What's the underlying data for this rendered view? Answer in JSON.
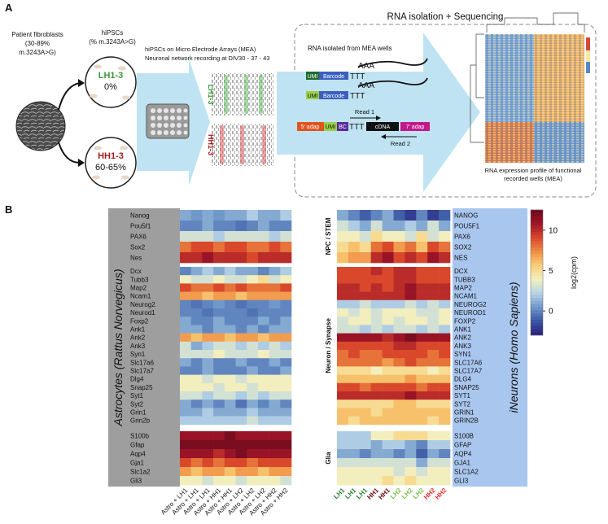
{
  "panel_a": {
    "label": "A",
    "fibroblasts": [
      "Patient fibroblasts",
      "(30-89%",
      "m.3243A>G)"
    ],
    "hipsc": [
      "hiPSCs",
      "(% m.3243A>G)"
    ],
    "lh": {
      "name": "LH1-3",
      "pct": "0%"
    },
    "hh": {
      "name": "HH1-3",
      "pct": "60-65%"
    },
    "mea": [
      "hiPSCs on Micro Electrode Arrays (MEA)",
      "Neuronal network recording at DIV30 - 37 - 43"
    ],
    "raster": [
      "LH1-3",
      "HH1-3"
    ],
    "seq_title": "RNA isolation + Sequencing",
    "rna_text": "RNA isolated from MEA wells",
    "molecule1": [
      "AAA",
      "UMI",
      "Barcode",
      "TTT"
    ],
    "molecule2": [
      "AAA",
      "UMI",
      "Barcode",
      "TTT"
    ],
    "read1": "Read 1",
    "library": [
      "5' adap",
      "UMI",
      "BC",
      "TTT",
      "cDNA",
      "7' adap"
    ],
    "read2": "Read 2",
    "profile": [
      "RNA expression profile of functional",
      "recorded wells (MEA)"
    ]
  },
  "panel_b": {
    "label": "B",
    "left": {
      "species": "Astrocytes (Rattus Norvegicus)",
      "columns": [
        "Astro + LH1",
        "Astro + LH1",
        "Astro + LH1",
        "Astro + HH1",
        "Astro + HH1",
        "Astro + LH2",
        "Astro + LH2",
        "Astro + LH2",
        "Astro + HH2",
        "Astro + HH2"
      ],
      "gene_groups": [
        [
          "Nanog",
          "Pou5f1",
          "PAX6",
          "Sox2",
          "Nes"
        ],
        [
          "Dcx",
          "Tubb3",
          "Map2",
          "Ncam1",
          "Neurog2",
          "Neurod1",
          "Foxp2",
          "Ank1",
          "Ank2",
          "Ank3",
          "Syn1",
          "Slc17a6",
          "Slc17a7",
          "Dlg4",
          "Snap25",
          "Syt1",
          "Syt2",
          "Grin1",
          "Grin2b"
        ],
        [
          "S100b",
          "Gfap",
          "Aqp4",
          "Gja1",
          "Slc1a2",
          "Gli3"
        ]
      ],
      "values": [
        [
          [
            1,
            0.5,
            1,
            0.5,
            1,
            1,
            2,
            1,
            1,
            2
          ],
          [
            0,
            0,
            1,
            0,
            0,
            -0.5,
            0,
            1,
            0,
            0
          ],
          [
            3,
            3,
            3,
            2,
            3,
            3,
            3,
            3,
            2,
            3
          ],
          [
            8,
            9,
            9,
            8,
            9,
            9,
            8,
            8,
            9,
            8
          ],
          [
            10,
            10,
            11,
            10,
            10,
            10,
            9,
            10,
            10,
            10
          ]
        ],
        [
          [
            0,
            1,
            2,
            1,
            2,
            1,
            1,
            0,
            1,
            2
          ],
          [
            4,
            3,
            3,
            4,
            3,
            3,
            4,
            5,
            3,
            4
          ],
          [
            9,
            8,
            8,
            9,
            8,
            9,
            8,
            8,
            8,
            9
          ],
          [
            7,
            7,
            6,
            7,
            7,
            6,
            7,
            7,
            7,
            7
          ],
          [
            0,
            -0.5,
            0,
            0.5,
            0,
            -0.5,
            0,
            0,
            0.5,
            0
          ],
          [
            0,
            0,
            -0.5,
            0,
            0,
            0,
            -0.5,
            0,
            0,
            0
          ],
          [
            1,
            0,
            0,
            1,
            0,
            0,
            0,
            1,
            0,
            1
          ],
          [
            1,
            1,
            0,
            1,
            1,
            0,
            1,
            0,
            1,
            1
          ],
          [
            7,
            6,
            7,
            7,
            6,
            7,
            7,
            6,
            7,
            7
          ],
          [
            3,
            1,
            2,
            3,
            3,
            2,
            3,
            2,
            3,
            2
          ],
          [
            3,
            3,
            3,
            4,
            3,
            3,
            3,
            4,
            3,
            3
          ],
          [
            1,
            0,
            1,
            0,
            0,
            1,
            0,
            0,
            1,
            0
          ],
          [
            0,
            0,
            1,
            0,
            0,
            0,
            1,
            0,
            0,
            1
          ],
          [
            4,
            4,
            3,
            4,
            4,
            3,
            4,
            4,
            4,
            4
          ],
          [
            4,
            4,
            4,
            3,
            4,
            4,
            3,
            4,
            4,
            4
          ],
          [
            3,
            3,
            2,
            3,
            3,
            2,
            3,
            2,
            3,
            3
          ],
          [
            1,
            0,
            1,
            0,
            1,
            -0.5,
            1,
            0,
            1,
            0
          ],
          [
            1,
            1,
            2,
            1,
            1,
            1,
            2,
            1,
            1,
            1
          ],
          [
            2,
            2,
            2,
            2,
            2,
            2,
            3,
            2,
            2,
            2
          ]
        ],
        [
          [
            11,
            11,
            11,
            11,
            12,
            11,
            11,
            11,
            11,
            11
          ],
          [
            12,
            12,
            12,
            12,
            12,
            12,
            12,
            12,
            12,
            12
          ],
          [
            11,
            11,
            11,
            10,
            11,
            12,
            11,
            11,
            11,
            11
          ],
          [
            9,
            8,
            9,
            8,
            9,
            9,
            8,
            9,
            9,
            9
          ],
          [
            7,
            6,
            7,
            7,
            6,
            7,
            7,
            6,
            7,
            7
          ],
          [
            4,
            4,
            3,
            4,
            4,
            3,
            4,
            4,
            4,
            3
          ]
        ]
      ]
    },
    "right": {
      "species": "iNeurons (Homo Sapiens)",
      "group_labels": [
        "NPC / STEM",
        "Neuron / Synapse",
        "Glia"
      ],
      "columns": [
        "LH1",
        "LH1",
        "LH1",
        "HH1",
        "HH1",
        "LH2",
        "LH2",
        "LH2",
        "HH2",
        "HH2"
      ],
      "column_colors": [
        "#2e7d32",
        "#2e7d32",
        "#2e7d32",
        "#6b0f14",
        "#6b0f14",
        "#7cbf4a",
        "#7cbf4a",
        "#7cbf4a",
        "#e03030",
        "#e03030"
      ],
      "gene_groups": [
        [
          "NANOG",
          "POU5F1",
          "PAX6",
          "SOX2",
          "NES"
        ],
        [
          "DCX",
          "TUBB3",
          "MAP2",
          "NCAM1",
          "NEUROG2",
          "NEUROD1",
          "FOXP2",
          "ANK1",
          "ANK2",
          "ANK3",
          "SYN1",
          "SLC17A6",
          "SLC17A7",
          "DLG4",
          "SNAP25",
          "SYT1",
          "SYT2",
          "GRIN1",
          "GRIN2B"
        ],
        [
          "S100B",
          "GFAP",
          "AQP4",
          "GJA1",
          "SLC1A2",
          "GLI3"
        ]
      ],
      "values": [
        [
          [
            1,
            0,
            -1,
            0,
            1,
            -1,
            -2,
            0,
            -2,
            -1
          ],
          [
            3,
            2,
            1,
            3,
            1,
            1,
            2,
            1,
            3,
            1
          ],
          [
            4,
            4,
            3,
            5,
            4,
            4,
            3,
            5,
            3,
            4
          ],
          [
            5,
            6,
            5,
            8,
            9,
            7,
            8,
            6,
            9,
            8
          ],
          [
            6,
            7,
            7,
            10,
            11,
            9,
            10,
            9,
            11,
            10
          ]
        ],
        [
          [
            9,
            9,
            9,
            10,
            9,
            10,
            10,
            9,
            9,
            9
          ],
          [
            9,
            9,
            9,
            9,
            9,
            10,
            10,
            9,
            9,
            9
          ],
          [
            10,
            10,
            9,
            10,
            9,
            10,
            11,
            10,
            10,
            10
          ],
          [
            10,
            10,
            10,
            10,
            10,
            10,
            11,
            10,
            10,
            10
          ],
          [
            2,
            2,
            3,
            2,
            2,
            2,
            3,
            2,
            3,
            2
          ],
          [
            4,
            3,
            4,
            3,
            4,
            4,
            4,
            3,
            3,
            4
          ],
          [
            3,
            4,
            4,
            3,
            4,
            3,
            4,
            4,
            3,
            4
          ],
          [
            3,
            3,
            2,
            3,
            2,
            3,
            3,
            2,
            3,
            2
          ],
          [
            11,
            11,
            11,
            11,
            10,
            11,
            12,
            11,
            11,
            11
          ],
          [
            9,
            9,
            9,
            9,
            9,
            10,
            10,
            9,
            9,
            9
          ],
          [
            8,
            9,
            8,
            8,
            9,
            9,
            9,
            9,
            8,
            9
          ],
          [
            8,
            8,
            8,
            8,
            7,
            8,
            9,
            8,
            8,
            8
          ],
          [
            5,
            5,
            5,
            4,
            5,
            5,
            5,
            5,
            4,
            5
          ],
          [
            6,
            6,
            6,
            6,
            6,
            6,
            7,
            6,
            6,
            6
          ],
          [
            9,
            9,
            8,
            9,
            9,
            9,
            9,
            8,
            9,
            9
          ],
          [
            10,
            10,
            10,
            10,
            10,
            10,
            11,
            10,
            10,
            10
          ],
          [
            5,
            5,
            5,
            5,
            5,
            6,
            6,
            5,
            5,
            5
          ],
          [
            6,
            6,
            6,
            5,
            6,
            6,
            6,
            6,
            6,
            6
          ],
          [
            6,
            5,
            6,
            6,
            6,
            6,
            6,
            6,
            5,
            6
          ]
        ],
        [
          [
            2,
            2,
            2,
            4,
            4,
            5,
            5,
            5,
            4,
            4
          ],
          [
            2,
            2,
            2,
            1,
            2,
            2,
            1,
            0,
            2,
            2
          ],
          [
            1,
            1,
            0,
            1,
            1,
            0,
            1,
            -1,
            1,
            0
          ],
          [
            3,
            3,
            3,
            3,
            3,
            3,
            3,
            1,
            3,
            3
          ],
          [
            4,
            4,
            4,
            4,
            4,
            3,
            4,
            3,
            4,
            4
          ],
          [
            4,
            4,
            4,
            4,
            5,
            4,
            5,
            4,
            4,
            4
          ]
        ]
      ]
    },
    "colorbar": {
      "label": "log2(cpm)",
      "range": [
        -3,
        12.5
      ],
      "ticks": [
        0,
        5,
        10
      ],
      "colors": [
        "#2a1f7a",
        "#3a55a4",
        "#6e97c8",
        "#b5d2e6",
        "#f2f0c2",
        "#f9cf78",
        "#ef9044",
        "#d9462b",
        "#a01627",
        "#6b0a1d"
      ]
    }
  }
}
